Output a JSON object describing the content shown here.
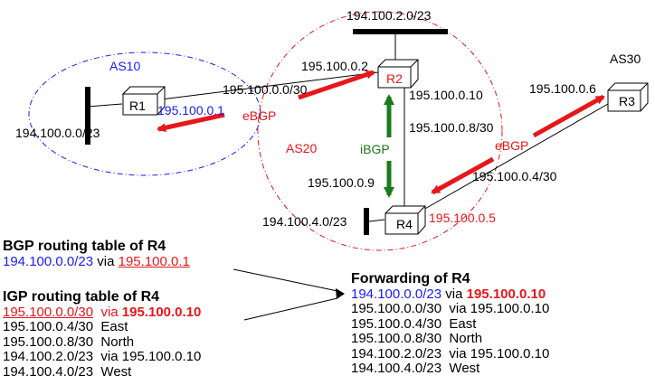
{
  "as_labels": {
    "as10": "AS10",
    "as20": "AS20",
    "as30": "AS30"
  },
  "routers": {
    "r1": "R1",
    "r2": "R2",
    "r3": "R3",
    "r4": "R4"
  },
  "prefixes": {
    "r1_lan": "194.100.0.0/23",
    "r2_lan": "194.100.2.0/23",
    "r4_lan": "194.100.4.0/23"
  },
  "addresses": {
    "r1_if": "195.100.0.1",
    "r2_if_as10": "195.100.0.2",
    "r2_if_down": "195.100.0.10",
    "r3_if": "195.100.0.6",
    "r4_if_up": "195.100.0.9",
    "r4_if_r3": "195.100.0.5"
  },
  "links": {
    "l_r1_r2": "195.100.0.0/30",
    "l_r2_r4": "195.100.0.8/30",
    "l_r3_r4": "195.100.0.4/30"
  },
  "sessions": {
    "ebgp_left": "eBGP",
    "ibgp": "iBGP",
    "ebgp_right": "eBGP"
  },
  "bgp_table": {
    "title": "BGP routing table of R4",
    "prefix": "194.100.0.0/23",
    "via_word": "via",
    "next_hop": "195.100.0.1"
  },
  "igp_table": {
    "title": "IGP routing table of R4",
    "first_prefix": "195.100.0.0/30",
    "first_via": "via",
    "first_next": "195.100.0.10",
    "rows": [
      "195.100.0.4/30  East",
      "195.100.0.8/30  North",
      "194.100.2.0/23  via 195.100.0.10",
      "194.100.4.0/23  West"
    ]
  },
  "forwarding": {
    "title": "Forwarding of R4",
    "first_prefix": "194.100.0.0/23",
    "first_via": "via",
    "first_next": "195.100.0.10",
    "rows": [
      "195.100.0.0/30  via 195.100.0.10",
      "195.100.0.4/30  East",
      "195.100.0.8/30  North",
      "194.100.2.0/23  via 195.100.0.10",
      "194.100.4.0/23  West"
    ]
  },
  "colors": {
    "blue": "#1a1aff",
    "red": "#e8161b",
    "green": "#1b7a1b"
  }
}
